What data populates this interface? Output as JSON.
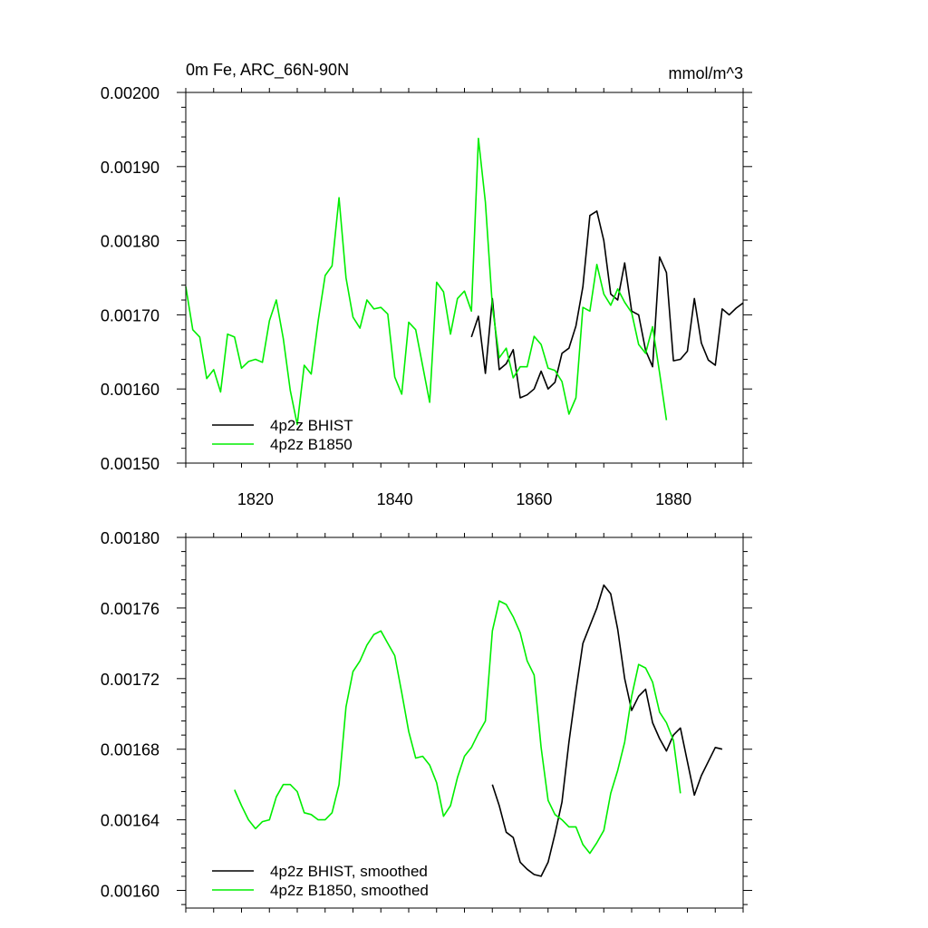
{
  "chart_data": [
    {
      "type": "line",
      "title": "0m Fe, ARC_66N-90N",
      "units": "mmol/m^3",
      "xlim": [
        1810,
        1890
      ],
      "ylim": [
        0.0015,
        0.002
      ],
      "xticks": [
        1820,
        1840,
        1860,
        1880
      ],
      "xtick_labels": [
        "1820",
        "1840",
        "1860",
        "1880"
      ],
      "yticks": [
        0.0015,
        0.0016,
        0.0017,
        0.0018,
        0.0019,
        0.002
      ],
      "ytick_labels": [
        "0.00150",
        "0.00160",
        "0.00170",
        "0.00180",
        "0.00190",
        "0.00200"
      ],
      "legend_position": "bottom-left",
      "series": [
        {
          "name": "4p2z BHIST",
          "color": "#000000",
          "x0": 1851,
          "values": [
            0.00167,
            0.001698,
            0.001621,
            0.001722,
            0.001626,
            0.001634,
            0.001653,
            0.001588,
            0.001592,
            0.0016,
            0.001624,
            0.0016,
            0.001609,
            0.001648,
            0.001655,
            0.001685,
            0.001738,
            0.001834,
            0.00184,
            0.0018,
            0.001728,
            0.00172,
            0.00177,
            0.001705,
            0.0017,
            0.001652,
            0.00163,
            0.001778,
            0.001757,
            0.001638,
            0.00164,
            0.001651,
            0.001722,
            0.001662,
            0.001639,
            0.001632,
            0.001708,
            0.0017,
            0.001709,
            0.001716
          ]
        },
        {
          "name": "4p2z B1850",
          "color": "#00ee00",
          "x0": 1810,
          "values": [
            0.001738,
            0.00168,
            0.00167,
            0.001614,
            0.001626,
            0.001596,
            0.001674,
            0.00167,
            0.001628,
            0.001637,
            0.00164,
            0.001636,
            0.001692,
            0.00172,
            0.001668,
            0.001598,
            0.001552,
            0.001632,
            0.00162,
            0.001692,
            0.001753,
            0.001766,
            0.001858,
            0.00175,
            0.001697,
            0.001682,
            0.00172,
            0.001708,
            0.00171,
            0.001701,
            0.001616,
            0.001593,
            0.00169,
            0.00168,
            0.001631,
            0.001582,
            0.001744,
            0.001731,
            0.001674,
            0.001722,
            0.001732,
            0.001705,
            0.001938,
            0.001852,
            0.001712,
            0.001642,
            0.001655,
            0.001615,
            0.00163,
            0.00163,
            0.001671,
            0.00166,
            0.001628,
            0.001625,
            0.00161,
            0.001566,
            0.001588,
            0.00171,
            0.001705,
            0.001768,
            0.001728,
            0.001713,
            0.001735,
            0.001717,
            0.001703,
            0.00166,
            0.001648,
            0.001684,
            0.001622,
            0.001558
          ]
        }
      ]
    },
    {
      "type": "line",
      "title": "",
      "xlim": [
        1810,
        1890
      ],
      "ylim": [
        0.00159,
        0.0018
      ],
      "xticks": [
        1820,
        1840,
        1860,
        1880
      ],
      "yticks": [
        0.0016,
        0.00164,
        0.00168,
        0.00172,
        0.00176,
        0.0018
      ],
      "ytick_labels": [
        "0.00160",
        "0.00164",
        "0.00168",
        "0.00172",
        "0.00176",
        "0.00180"
      ],
      "legend_position": "bottom-left",
      "series": [
        {
          "name": "4p2z BHIST, smoothed",
          "color": "#000000",
          "x0": 1854,
          "values": [
            0.00166,
            0.001648,
            0.001633,
            0.00163,
            0.001616,
            0.001612,
            0.001609,
            0.001608,
            0.001616,
            0.001632,
            0.00165,
            0.001684,
            0.001713,
            0.00174,
            0.00175,
            0.00176,
            0.001773,
            0.001768,
            0.001748,
            0.00172,
            0.001702,
            0.00171,
            0.001714,
            0.001695,
            0.001686,
            0.001679,
            0.001688,
            0.001692,
            0.001673,
            0.001654,
            0.001665,
            0.001673,
            0.001681,
            0.00168
          ]
        },
        {
          "name": "4p2z B1850, smoothed",
          "color": "#00ee00",
          "x0": 1817,
          "values": [
            0.001657,
            0.001648,
            0.00164,
            0.001635,
            0.001639,
            0.00164,
            0.001653,
            0.00166,
            0.00166,
            0.001656,
            0.001644,
            0.001643,
            0.00164,
            0.00164,
            0.001644,
            0.00166,
            0.001704,
            0.001724,
            0.00173,
            0.001739,
            0.001745,
            0.001747,
            0.00174,
            0.001733,
            0.001712,
            0.00169,
            0.001675,
            0.001676,
            0.001671,
            0.001661,
            0.001642,
            0.001648,
            0.001664,
            0.001676,
            0.001681,
            0.001689,
            0.001696,
            0.001747,
            0.001764,
            0.001762,
            0.001755,
            0.001746,
            0.00173,
            0.001722,
            0.001681,
            0.001651,
            0.001643,
            0.00164,
            0.001636,
            0.001636,
            0.001626,
            0.001621,
            0.001627,
            0.001634,
            0.001655,
            0.001668,
            0.001684,
            0.00171,
            0.001728,
            0.001726,
            0.001718,
            0.001701,
            0.001695,
            0.001685,
            0.001655
          ]
        }
      ]
    }
  ]
}
